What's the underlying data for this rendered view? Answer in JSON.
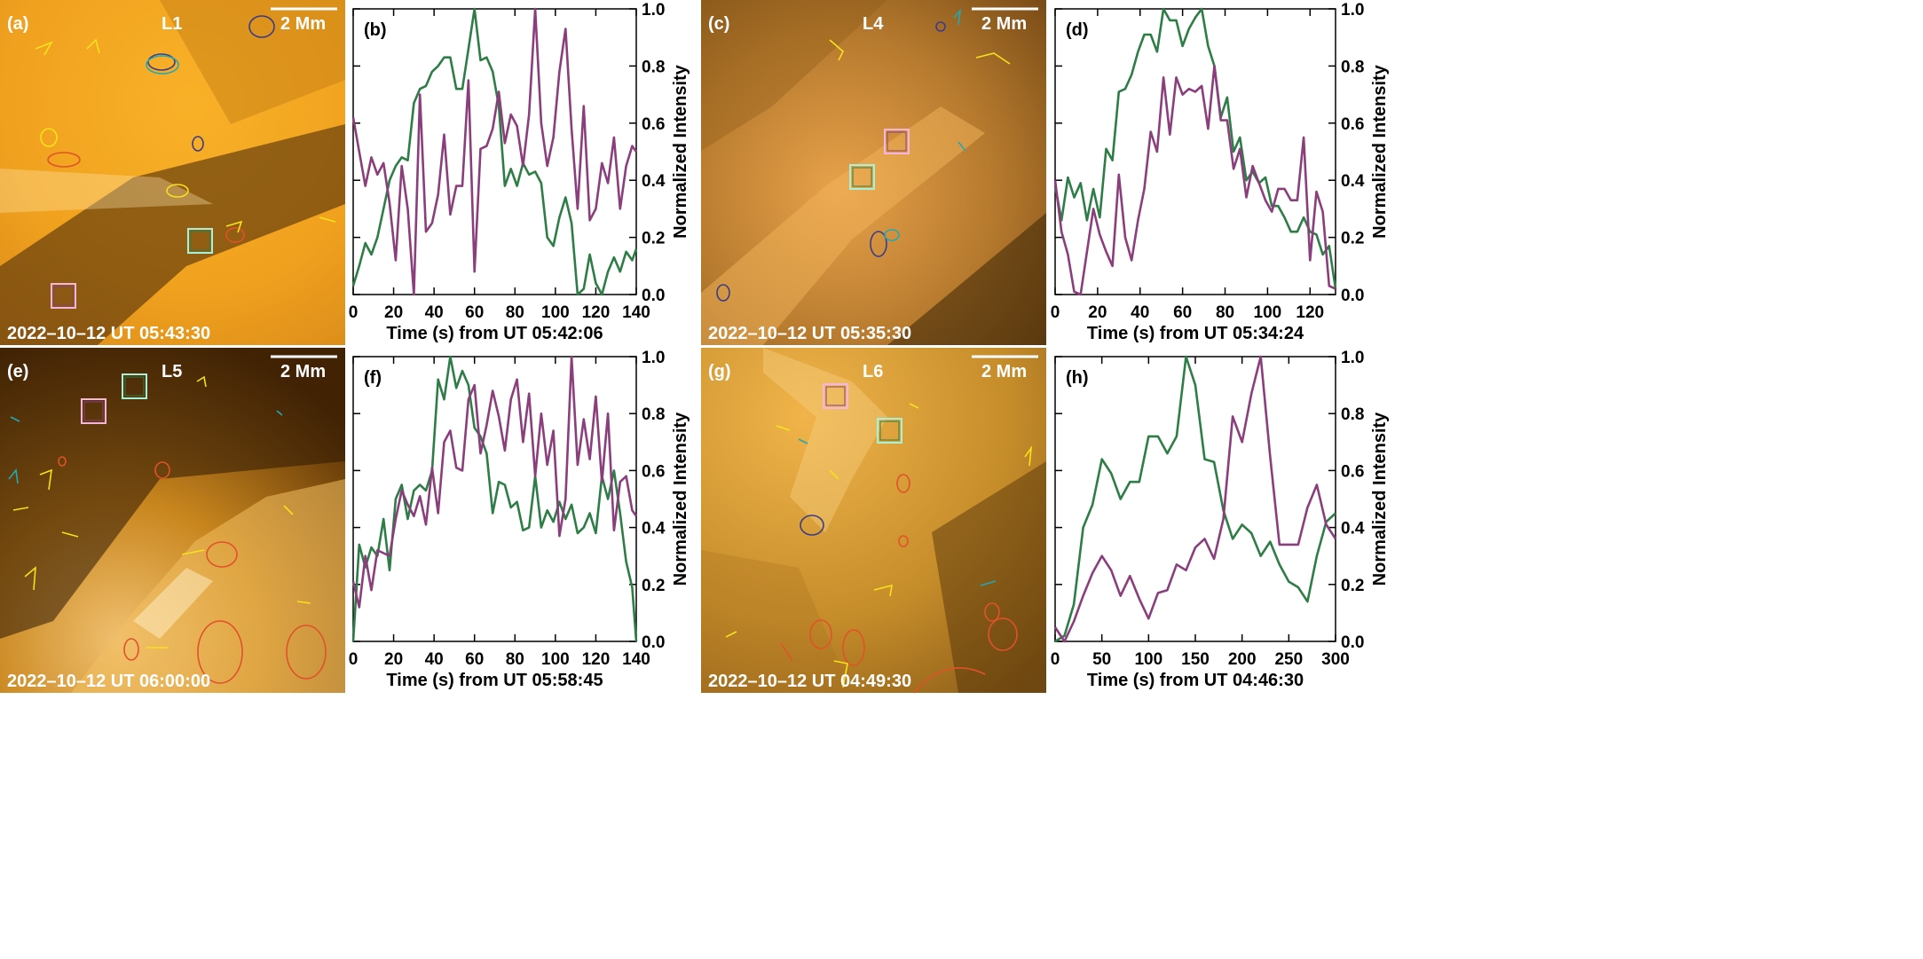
{
  "panels": [
    {
      "id": "a",
      "letter": "(a)",
      "loop": "L1",
      "scale": "2 Mm",
      "timestamp": "2022–10–12 UT 05:43:30",
      "bg": "#f2a21e"
    },
    {
      "id": "c",
      "letter": "(c)",
      "loop": "L4",
      "scale": "2 Mm",
      "timestamp": "2022–10–12 UT 05:35:30",
      "bg": "#c58a35"
    },
    {
      "id": "e",
      "letter": "(e)",
      "loop": "L5",
      "scale": "2 Mm",
      "timestamp": "2022–10–12 UT 06:00:00",
      "bg": "#9a5e12"
    },
    {
      "id": "g",
      "letter": "(g)",
      "loop": "L6",
      "scale": "2 Mm",
      "timestamp": "2022–10–12 UT 04:49:30",
      "bg": "#c9932c"
    }
  ],
  "colors": {
    "green": "#2e7d46",
    "purple": "#8a3e7c",
    "pink_box": "#f4b6dc",
    "cyan_box": "#a8f0d8",
    "contour_yellow": "#f5e21a",
    "contour_red": "#e0522a",
    "contour_cyan": "#22a8b5",
    "contour_navy": "#3c3c86"
  },
  "chart_data": [
    {
      "type": "line",
      "letter": "(b)",
      "xlabel": "Time (s) from UT 05:42:06",
      "ylabel": "Normalized Intensity",
      "xlim": [
        0,
        140
      ],
      "ylim": [
        0,
        1
      ],
      "xticks": [
        0,
        20,
        40,
        60,
        80,
        100,
        120,
        140
      ],
      "yticks": [
        0.0,
        0.2,
        0.4,
        0.6,
        0.8,
        1.0
      ],
      "series": [
        {
          "color": "green",
          "x": [
            0,
            3,
            6,
            9,
            12,
            15,
            18,
            21,
            24,
            27,
            30,
            33,
            36,
            39,
            42,
            45,
            48,
            51,
            54,
            57,
            60,
            63,
            66,
            69,
            72,
            75,
            78,
            81,
            84,
            87,
            90,
            93,
            96,
            99,
            102,
            105,
            108,
            111,
            114,
            117,
            120,
            123,
            126,
            129,
            132,
            135,
            138,
            140
          ],
          "y": [
            0.03,
            0.1,
            0.18,
            0.14,
            0.2,
            0.3,
            0.4,
            0.45,
            0.48,
            0.47,
            0.67,
            0.72,
            0.73,
            0.78,
            0.8,
            0.83,
            0.83,
            0.72,
            0.72,
            0.86,
            1.0,
            0.82,
            0.83,
            0.78,
            0.66,
            0.38,
            0.44,
            0.38,
            0.46,
            0.42,
            0.43,
            0.39,
            0.2,
            0.17,
            0.27,
            0.34,
            0.25,
            0.0,
            0.02,
            0.14,
            0.04,
            0.0,
            0.08,
            0.13,
            0.08,
            0.15,
            0.12,
            0.16
          ]
        },
        {
          "color": "purple",
          "x": [
            0,
            3,
            6,
            9,
            12,
            15,
            18,
            21,
            24,
            27,
            30,
            33,
            36,
            39,
            42,
            45,
            48,
            51,
            54,
            57,
            60,
            63,
            66,
            69,
            72,
            75,
            78,
            81,
            84,
            87,
            90,
            93,
            96,
            99,
            102,
            105,
            108,
            111,
            114,
            117,
            120,
            123,
            126,
            129,
            132,
            135,
            138,
            140
          ],
          "y": [
            0.62,
            0.5,
            0.38,
            0.48,
            0.42,
            0.46,
            0.32,
            0.12,
            0.45,
            0.3,
            0.0,
            0.7,
            0.22,
            0.25,
            0.35,
            0.56,
            0.28,
            0.38,
            0.38,
            0.75,
            0.08,
            0.51,
            0.52,
            0.58,
            0.71,
            0.53,
            0.63,
            0.59,
            0.45,
            0.63,
            1.0,
            0.6,
            0.45,
            0.55,
            0.78,
            0.93,
            0.58,
            0.3,
            0.66,
            0.26,
            0.3,
            0.46,
            0.39,
            0.55,
            0.3,
            0.45,
            0.52,
            0.5
          ]
        }
      ]
    },
    {
      "type": "line",
      "letter": "(d)",
      "xlabel": "Time (s) from UT 05:34:24",
      "ylabel": "Normalized Intensity",
      "xlim": [
        0,
        132
      ],
      "ylim": [
        0,
        1
      ],
      "xticks": [
        0,
        20,
        40,
        60,
        80,
        100,
        120
      ],
      "yticks": [
        0.0,
        0.2,
        0.4,
        0.6,
        0.8,
        1.0
      ],
      "series": [
        {
          "color": "green",
          "x": [
            0,
            3,
            6,
            9,
            12,
            15,
            18,
            21,
            24,
            27,
            30,
            33,
            36,
            39,
            42,
            45,
            48,
            51,
            54,
            57,
            60,
            63,
            66,
            69,
            72,
            75,
            78,
            81,
            84,
            87,
            90,
            93,
            96,
            99,
            102,
            105,
            108,
            111,
            114,
            117,
            120,
            123,
            126,
            129,
            132
          ],
          "y": [
            0.38,
            0.26,
            0.41,
            0.34,
            0.39,
            0.26,
            0.37,
            0.27,
            0.51,
            0.47,
            0.71,
            0.72,
            0.77,
            0.85,
            0.91,
            0.91,
            0.85,
            1.0,
            0.96,
            0.96,
            0.87,
            0.93,
            0.97,
            1.0,
            0.87,
            0.8,
            0.62,
            0.69,
            0.5,
            0.55,
            0.4,
            0.43,
            0.39,
            0.41,
            0.31,
            0.31,
            0.27,
            0.22,
            0.22,
            0.27,
            0.22,
            0.21,
            0.14,
            0.17,
            0.02
          ]
        },
        {
          "color": "purple",
          "x": [
            0,
            3,
            6,
            9,
            12,
            15,
            18,
            21,
            24,
            27,
            30,
            33,
            36,
            39,
            42,
            45,
            48,
            51,
            54,
            57,
            60,
            63,
            66,
            69,
            72,
            75,
            78,
            81,
            84,
            87,
            90,
            93,
            96,
            99,
            102,
            105,
            108,
            111,
            114,
            117,
            120,
            123,
            126,
            129,
            132
          ],
          "y": [
            0.4,
            0.22,
            0.14,
            0.01,
            0.0,
            0.15,
            0.3,
            0.21,
            0.15,
            0.1,
            0.42,
            0.2,
            0.12,
            0.26,
            0.37,
            0.57,
            0.5,
            0.76,
            0.56,
            0.76,
            0.7,
            0.72,
            0.71,
            0.73,
            0.58,
            0.8,
            0.61,
            0.61,
            0.44,
            0.51,
            0.34,
            0.45,
            0.39,
            0.33,
            0.29,
            0.37,
            0.37,
            0.33,
            0.33,
            0.55,
            0.12,
            0.36,
            0.29,
            0.03,
            0.02
          ]
        }
      ]
    },
    {
      "type": "line",
      "letter": "(f)",
      "xlabel": "Time (s) from UT 05:58:45",
      "ylabel": "Normalized Intensity",
      "xlim": [
        0,
        140
      ],
      "ylim": [
        0,
        1
      ],
      "xticks": [
        0,
        20,
        40,
        60,
        80,
        100,
        120,
        140
      ],
      "yticks": [
        0.0,
        0.2,
        0.4,
        0.6,
        0.8,
        1.0
      ],
      "series": [
        {
          "color": "green",
          "x": [
            0,
            3,
            6,
            9,
            12,
            15,
            18,
            21,
            24,
            27,
            30,
            33,
            36,
            39,
            42,
            45,
            48,
            51,
            54,
            57,
            60,
            63,
            66,
            69,
            72,
            75,
            78,
            81,
            84,
            87,
            90,
            93,
            96,
            99,
            102,
            105,
            108,
            111,
            114,
            117,
            120,
            123,
            126,
            129,
            132,
            135,
            138,
            140
          ],
          "y": [
            0.0,
            0.34,
            0.26,
            0.33,
            0.3,
            0.43,
            0.25,
            0.5,
            0.55,
            0.43,
            0.53,
            0.55,
            0.53,
            0.6,
            0.92,
            0.85,
            1.0,
            0.89,
            0.95,
            0.9,
            0.75,
            0.72,
            0.66,
            0.45,
            0.56,
            0.55,
            0.47,
            0.49,
            0.39,
            0.4,
            0.58,
            0.4,
            0.46,
            0.42,
            0.49,
            0.43,
            0.48,
            0.38,
            0.4,
            0.45,
            0.38,
            0.58,
            0.5,
            0.6,
            0.45,
            0.28,
            0.19,
            0.0
          ]
        },
        {
          "color": "purple",
          "x": [
            0,
            3,
            6,
            9,
            12,
            15,
            18,
            21,
            24,
            27,
            30,
            33,
            36,
            39,
            42,
            45,
            48,
            51,
            54,
            57,
            60,
            63,
            66,
            69,
            72,
            75,
            78,
            81,
            84,
            87,
            90,
            93,
            96,
            99,
            102,
            105,
            108,
            111,
            114,
            117,
            120,
            123,
            126,
            129,
            132,
            135,
            138,
            140
          ],
          "y": [
            0.21,
            0.12,
            0.3,
            0.18,
            0.32,
            0.31,
            0.3,
            0.43,
            0.53,
            0.48,
            0.44,
            0.51,
            0.41,
            0.61,
            0.45,
            0.7,
            0.74,
            0.61,
            0.6,
            0.85,
            0.9,
            0.66,
            0.76,
            0.88,
            0.79,
            0.67,
            0.85,
            0.92,
            0.7,
            0.87,
            0.58,
            0.8,
            0.62,
            0.74,
            0.37,
            0.5,
            1.0,
            0.62,
            0.78,
            0.64,
            0.86,
            0.56,
            0.8,
            0.39,
            0.56,
            0.58,
            0.46,
            0.44
          ]
        }
      ]
    },
    {
      "type": "line",
      "letter": "(h)",
      "xlabel": "Time (s) from UT 04:46:30",
      "ylabel": "Normalized Intensity",
      "xlim": [
        0,
        300
      ],
      "ylim": [
        0,
        1
      ],
      "xticks": [
        0,
        50,
        100,
        150,
        200,
        250,
        300
      ],
      "yticks": [
        0.0,
        0.2,
        0.4,
        0.6,
        0.8,
        1.0
      ],
      "series": [
        {
          "color": "green",
          "x": [
            0,
            10,
            20,
            30,
            40,
            50,
            60,
            70,
            80,
            90,
            100,
            110,
            120,
            130,
            140,
            150,
            160,
            170,
            180,
            190,
            200,
            210,
            220,
            230,
            240,
            250,
            260,
            270,
            280,
            290,
            300
          ],
          "y": [
            0.0,
            0.02,
            0.13,
            0.4,
            0.48,
            0.64,
            0.59,
            0.5,
            0.56,
            0.56,
            0.72,
            0.72,
            0.66,
            0.72,
            1.0,
            0.9,
            0.64,
            0.63,
            0.46,
            0.36,
            0.41,
            0.38,
            0.3,
            0.35,
            0.27,
            0.21,
            0.19,
            0.14,
            0.3,
            0.42,
            0.45
          ]
        },
        {
          "color": "purple",
          "x": [
            0,
            10,
            20,
            30,
            40,
            50,
            60,
            70,
            80,
            90,
            100,
            110,
            120,
            130,
            140,
            150,
            160,
            170,
            180,
            190,
            200,
            210,
            220,
            230,
            240,
            250,
            260,
            270,
            280,
            290,
            300
          ],
          "y": [
            0.05,
            0.0,
            0.07,
            0.16,
            0.24,
            0.3,
            0.25,
            0.16,
            0.23,
            0.15,
            0.08,
            0.17,
            0.18,
            0.27,
            0.25,
            0.33,
            0.36,
            0.29,
            0.43,
            0.79,
            0.7,
            0.87,
            1.0,
            0.65,
            0.34,
            0.34,
            0.34,
            0.47,
            0.55,
            0.41,
            0.36
          ]
        }
      ]
    }
  ]
}
